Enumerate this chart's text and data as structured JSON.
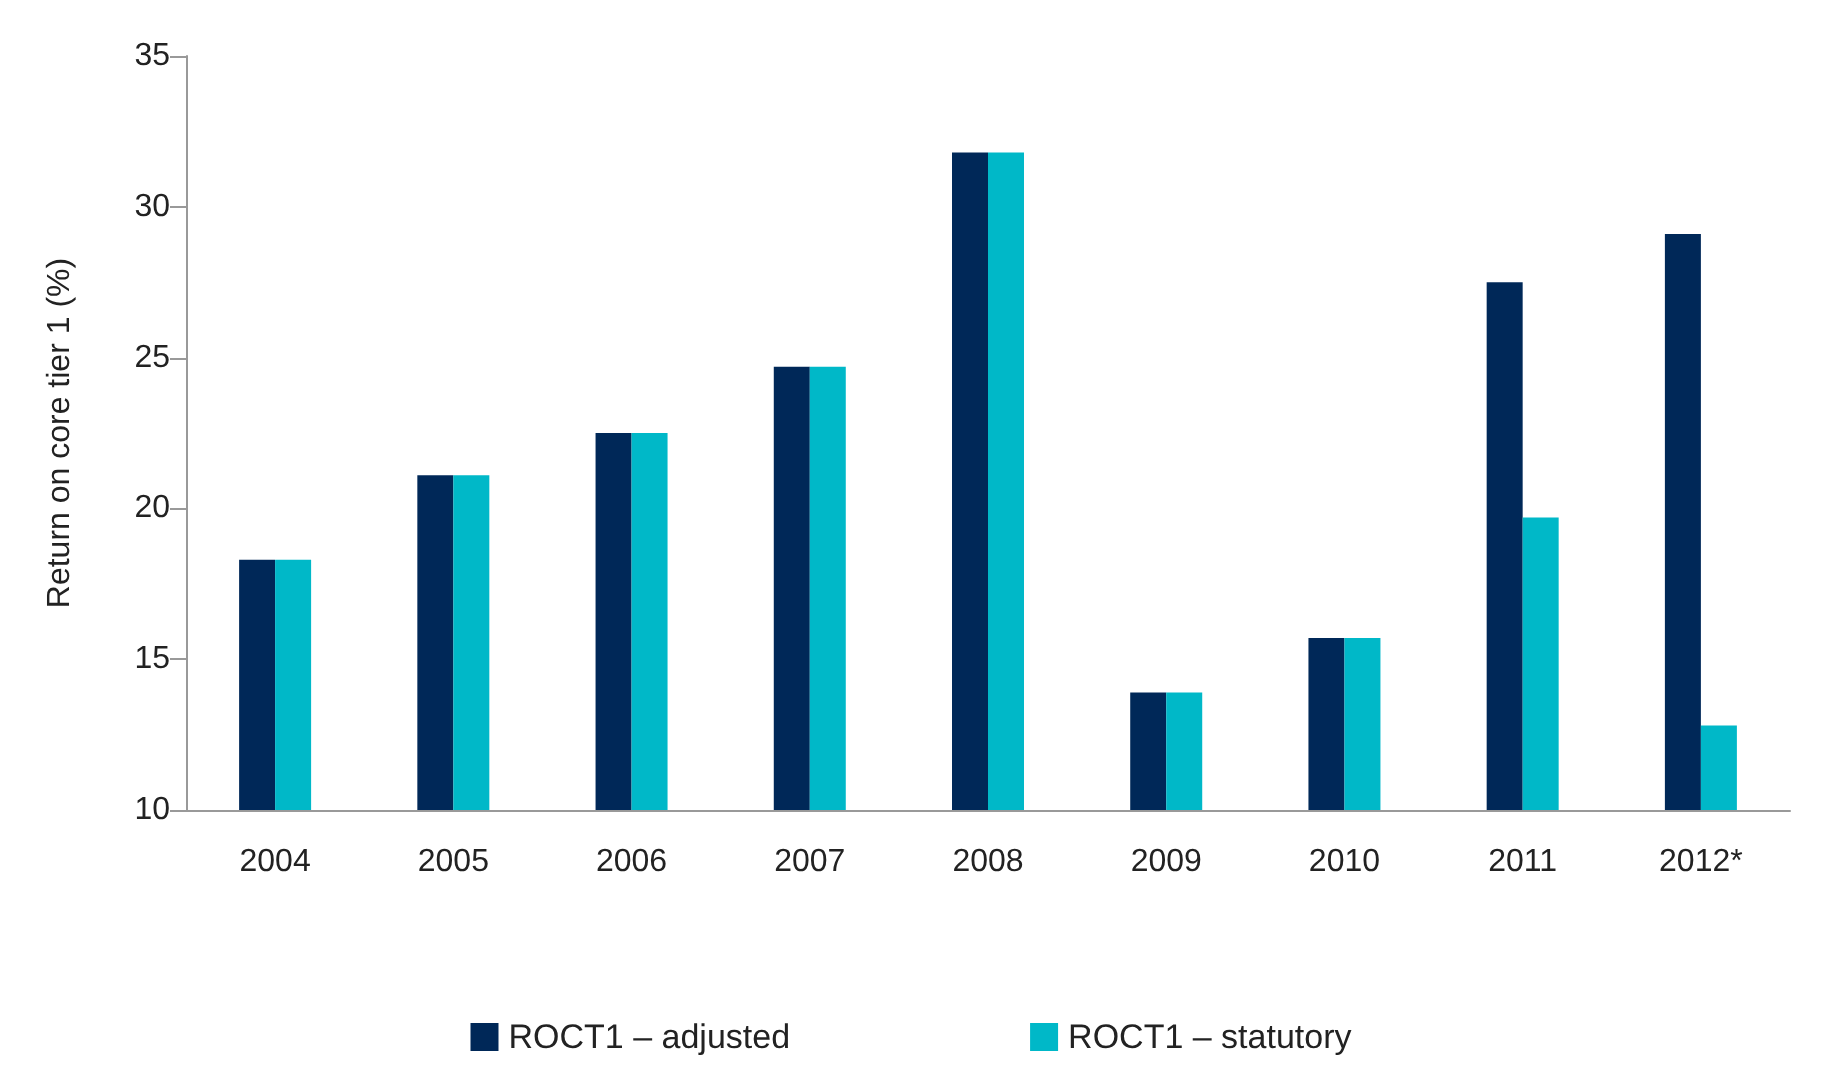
{
  "chart_data": {
    "type": "bar",
    "ylabel": "Return on core tier 1 (%)",
    "categories": [
      "2004",
      "2005",
      "2006",
      "2007",
      "2008",
      "2009",
      "2010",
      "2011",
      "2012*"
    ],
    "series": [
      {
        "name": "ROCT1 – adjusted",
        "color": "#002858",
        "values": [
          18.3,
          21.1,
          22.5,
          24.7,
          31.8,
          13.9,
          15.7,
          27.5,
          29.1
        ]
      },
      {
        "name": "ROCT1 – statutory",
        "color": "#00b8c8",
        "values": [
          18.3,
          21.1,
          22.5,
          24.7,
          31.8,
          13.9,
          15.7,
          19.7,
          12.8
        ]
      }
    ],
    "ylim": [
      10,
      35
    ],
    "yticks": [
      10,
      15,
      20,
      25,
      30,
      35
    ],
    "grid": false,
    "legend": "bottom"
  }
}
